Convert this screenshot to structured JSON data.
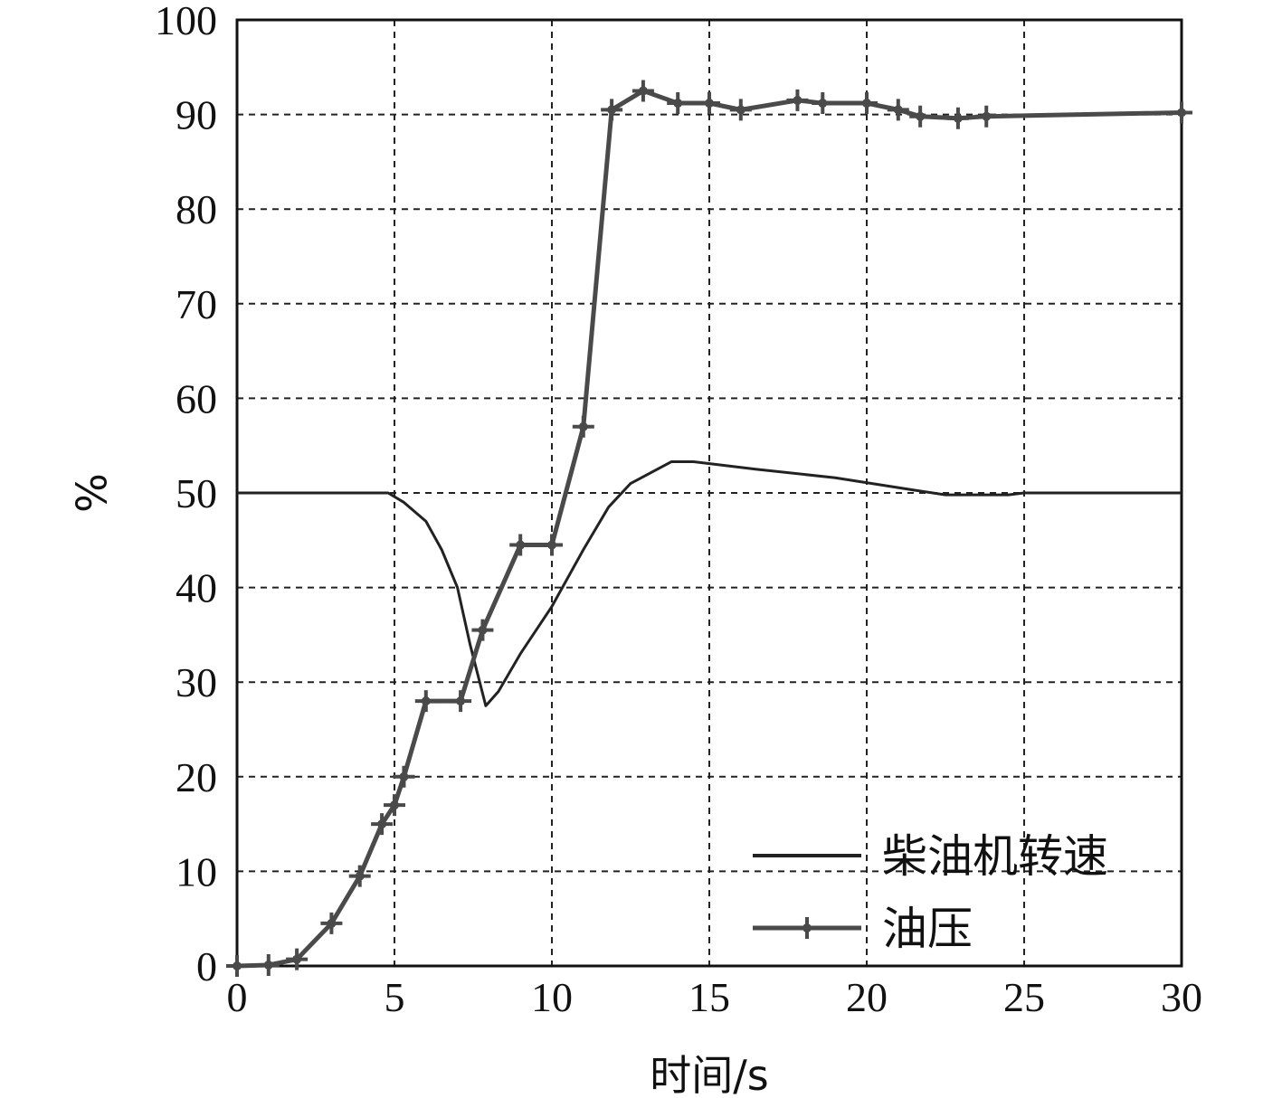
{
  "chart_data": {
    "type": "line",
    "xlabel": "时间/s",
    "ylabel": "%",
    "xlim": [
      0,
      30
    ],
    "ylim": [
      0,
      100
    ],
    "x_ticks": [
      "0",
      "5",
      "10",
      "15",
      "20",
      "25",
      "30"
    ],
    "y_ticks": [
      "0",
      "10",
      "20",
      "30",
      "40",
      "50",
      "60",
      "70",
      "80",
      "90",
      "100"
    ],
    "grid": true,
    "legend_position": "bottom-right",
    "series": [
      {
        "name": "柴油机转速",
        "color": "#222222",
        "marker": "none",
        "points": [
          [
            0,
            50
          ],
          [
            1.5,
            50
          ],
          [
            4.8,
            50
          ],
          [
            5.3,
            49
          ],
          [
            6.0,
            47
          ],
          [
            6.5,
            44
          ],
          [
            7.0,
            40
          ],
          [
            7.4,
            34
          ],
          [
            7.9,
            27.5
          ],
          [
            8.3,
            29
          ],
          [
            9.0,
            33
          ],
          [
            10.0,
            38
          ],
          [
            11.0,
            44
          ],
          [
            11.8,
            48.5
          ],
          [
            12.5,
            51
          ],
          [
            13.8,
            53.3
          ],
          [
            14.5,
            53.3
          ],
          [
            16.5,
            52.5
          ],
          [
            19.0,
            51.6
          ],
          [
            21.5,
            50.3
          ],
          [
            22.5,
            49.8
          ],
          [
            24.5,
            49.8
          ],
          [
            25,
            50
          ],
          [
            30,
            50
          ]
        ]
      },
      {
        "name": "油压",
        "color": "#4a4a4a",
        "marker": "plus",
        "points": [
          [
            0,
            0
          ],
          [
            1.0,
            0.1
          ],
          [
            1.9,
            0.7
          ],
          [
            3.0,
            4.5
          ],
          [
            3.9,
            9.5
          ],
          [
            4.6,
            15
          ],
          [
            5.0,
            17
          ],
          [
            5.3,
            20
          ],
          [
            6.0,
            28
          ],
          [
            7.1,
            28
          ],
          [
            7.8,
            35.5
          ],
          [
            9.0,
            44.5
          ],
          [
            10.0,
            44.5
          ],
          [
            11.0,
            57
          ],
          [
            11.9,
            90.5
          ],
          [
            12.9,
            92.5
          ],
          [
            14.0,
            91.2
          ],
          [
            15.0,
            91.2
          ],
          [
            16.0,
            90.5
          ],
          [
            17.8,
            91.5
          ],
          [
            18.6,
            91.2
          ],
          [
            20.0,
            91.2
          ],
          [
            21.0,
            90.5
          ],
          [
            21.7,
            89.8
          ],
          [
            22.9,
            89.6
          ],
          [
            23.8,
            89.8
          ],
          [
            30.0,
            90.2
          ]
        ]
      }
    ]
  }
}
